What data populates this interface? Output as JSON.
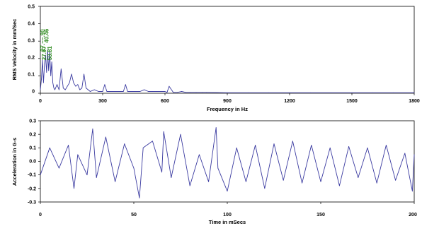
{
  "chart_data": [
    {
      "type": "line",
      "xlabel": "Frequency in Hz",
      "ylabel": "RMS Velocity in mm/Sec",
      "xlim": [
        0,
        1800
      ],
      "ylim": [
        0,
        0.5
      ],
      "x_ticks": [
        "0",
        "300",
        "600",
        "900",
        "1200",
        "1500",
        "1800"
      ],
      "y_ticks": [
        "0",
        "0.1",
        "0.2",
        "0.3",
        "0.4",
        "0.5"
      ],
      "grid": false,
      "line_color": "#3a3aa0",
      "annotation_color": "#2e8b1e",
      "annotations": [
        {
          "text": "27.~~.90",
          "x": 20,
          "y": 0.24
        },
        {
          "text": "40.46",
          "x": 40,
          "y": 0.29
        },
        {
          "text": "27.07",
          "x": 27,
          "y": 0.19
        },
        {
          "text": "53.81",
          "x": 54,
          "y": 0.19
        }
      ],
      "series": [
        {
          "x": [
            0,
            5,
            10,
            15,
            20,
            25,
            30,
            35,
            40,
            45,
            50,
            55,
            60,
            65,
            70,
            80,
            90,
            100,
            110,
            120,
            130,
            140,
            150,
            160,
            170,
            180,
            190,
            200,
            210,
            220,
            230,
            240,
            260,
            280,
            300,
            310,
            320,
            340,
            360,
            380,
            400,
            410,
            420,
            440,
            460,
            480,
            500,
            520,
            540,
            560,
            580,
            600,
            610,
            620,
            640,
            660,
            680,
            700,
            720,
            750,
            780,
            800,
            900,
            1000,
            1100,
            1200,
            1300,
            1400,
            1500,
            1600,
            1700,
            1800
          ],
          "y": [
            0.02,
            0.08,
            0.19,
            0.06,
            0.17,
            0.22,
            0.12,
            0.25,
            0.13,
            0.24,
            0.1,
            0.18,
            0.06,
            0.03,
            0.02,
            0.05,
            0.02,
            0.14,
            0.03,
            0.02,
            0.04,
            0.06,
            0.11,
            0.06,
            0.04,
            0.05,
            0.02,
            0.03,
            0.11,
            0.03,
            0.02,
            0.01,
            0.02,
            0.01,
            0.01,
            0.05,
            0.01,
            0.01,
            0.01,
            0.01,
            0.01,
            0.05,
            0.01,
            0.01,
            0.01,
            0.01,
            0.02,
            0.01,
            0.01,
            0.01,
            0.01,
            0.01,
            0.005,
            0.04,
            0.005,
            0.005,
            0.01,
            0.005,
            0.005,
            0.005,
            0.005,
            0.005,
            0.003,
            0.003,
            0.003,
            0.003,
            0.003,
            0.003,
            0.003,
            0.003,
            0.003,
            0.003
          ]
        }
      ]
    },
    {
      "type": "line",
      "xlabel": "Time in mSecs",
      "ylabel": "Acceleration in G-s",
      "xlim": [
        0,
        200
      ],
      "ylim": [
        -0.3,
        0.3
      ],
      "x_ticks": [
        "0",
        "50",
        "100",
        "150",
        "200"
      ],
      "y_ticks": [
        "0.3",
        "0.2",
        "0.1",
        "0.0",
        "-0.1",
        "-0.2",
        "-0.3"
      ],
      "grid": false,
      "line_color": "#3a3aa0",
      "series": [
        {
          "x": [
            0,
            5,
            10,
            15,
            18,
            20,
            25,
            28,
            30,
            35,
            40,
            45,
            50,
            53,
            55,
            60,
            65,
            66,
            70,
            75,
            80,
            85,
            90,
            94,
            95,
            100,
            105,
            110,
            115,
            120,
            125,
            130,
            135,
            140,
            145,
            150,
            155,
            160,
            165,
            170,
            175,
            180,
            185,
            190,
            195,
            199,
            200
          ],
          "y": [
            -0.1,
            0.1,
            -0.05,
            0.12,
            -0.2,
            0.05,
            -0.1,
            0.24,
            -0.12,
            0.18,
            -0.15,
            0.13,
            -0.05,
            -0.27,
            0.1,
            0.15,
            -0.08,
            0.22,
            -0.12,
            0.2,
            -0.18,
            0.05,
            -0.15,
            0.25,
            -0.05,
            -0.22,
            0.1,
            -0.15,
            0.12,
            -0.2,
            0.13,
            -0.14,
            0.15,
            -0.16,
            0.12,
            -0.15,
            0.1,
            -0.18,
            0.11,
            -0.12,
            0.1,
            -0.16,
            0.12,
            -0.14,
            0.06,
            -0.22,
            0.05
          ]
        }
      ]
    }
  ]
}
